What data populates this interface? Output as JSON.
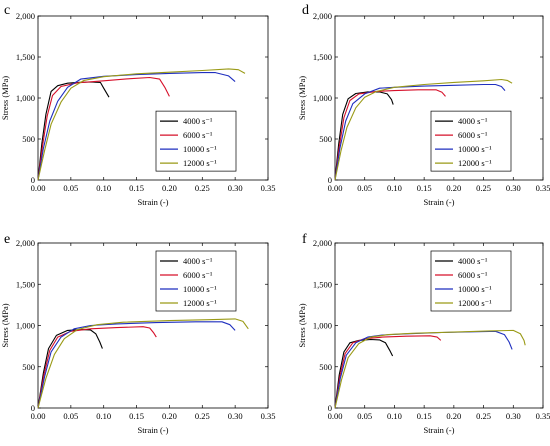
{
  "chart_data": [
    {
      "type": "line",
      "panel_label": "c",
      "xlabel": "Strain (-)",
      "ylabel": "Stress (MPa)",
      "xlim": [
        0,
        0.35
      ],
      "ylim": [
        0,
        2000
      ],
      "x_ticks": [
        "0.00",
        "0.05",
        "0.10",
        "0.15",
        "0.20",
        "0.25",
        "0.30",
        "0.35"
      ],
      "y_ticks": [
        "0",
        "500",
        "1,000",
        "1,500",
        "2,000"
      ],
      "legend_position": "center-right",
      "series": [
        {
          "name": "4000 s⁻¹",
          "color": "#000000",
          "points": [
            [
              0,
              0
            ],
            [
              0.006,
              450
            ],
            [
              0.012,
              800
            ],
            [
              0.02,
              1080
            ],
            [
              0.03,
              1150
            ],
            [
              0.045,
              1180
            ],
            [
              0.06,
              1190
            ],
            [
              0.08,
              1195
            ],
            [
              0.095,
              1190
            ],
            [
              0.1,
              1120
            ],
            [
              0.108,
              1010
            ]
          ]
        },
        {
          "name": "6000 s⁻¹",
          "color": "#d6102a",
          "points": [
            [
              0,
              0
            ],
            [
              0.007,
              420
            ],
            [
              0.014,
              780
            ],
            [
              0.022,
              1030
            ],
            [
              0.035,
              1140
            ],
            [
              0.06,
              1185
            ],
            [
              0.1,
              1210
            ],
            [
              0.14,
              1235
            ],
            [
              0.17,
              1250
            ],
            [
              0.185,
              1230
            ],
            [
              0.193,
              1130
            ],
            [
              0.2,
              1020
            ]
          ]
        },
        {
          "name": "10000 s⁻¹",
          "color": "#1f2fbf",
          "points": [
            [
              0,
              0
            ],
            [
              0.008,
              380
            ],
            [
              0.018,
              720
            ],
            [
              0.03,
              960
            ],
            [
              0.045,
              1130
            ],
            [
              0.065,
              1230
            ],
            [
              0.1,
              1265
            ],
            [
              0.15,
              1285
            ],
            [
              0.2,
              1300
            ],
            [
              0.25,
              1310
            ],
            [
              0.27,
              1310
            ],
            [
              0.29,
              1270
            ],
            [
              0.3,
              1200
            ]
          ]
        },
        {
          "name": "12000 s⁻¹",
          "color": "#9a9a16",
          "points": [
            [
              0,
              0
            ],
            [
              0.01,
              360
            ],
            [
              0.02,
              680
            ],
            [
              0.035,
              950
            ],
            [
              0.05,
              1120
            ],
            [
              0.07,
              1215
            ],
            [
              0.1,
              1260
            ],
            [
              0.15,
              1295
            ],
            [
              0.2,
              1315
            ],
            [
              0.25,
              1335
            ],
            [
              0.29,
              1355
            ],
            [
              0.305,
              1345
            ],
            [
              0.315,
              1300
            ]
          ]
        }
      ]
    },
    {
      "type": "line",
      "panel_label": "d",
      "xlabel": "Strain (-)",
      "ylabel": "Stress (MPa)",
      "xlim": [
        0,
        0.35
      ],
      "ylim": [
        0,
        2000
      ],
      "x_ticks": [
        "0.00",
        "0.05",
        "0.10",
        "0.15",
        "0.20",
        "0.25",
        "0.30",
        "0.35"
      ],
      "y_ticks": [
        "0",
        "500",
        "1,000",
        "1,500",
        "2,000"
      ],
      "legend_position": "center-right",
      "series": [
        {
          "name": "4000 s⁻¹",
          "color": "#000000",
          "points": [
            [
              0,
              0
            ],
            [
              0.006,
              430
            ],
            [
              0.013,
              800
            ],
            [
              0.022,
              990
            ],
            [
              0.035,
              1055
            ],
            [
              0.055,
              1075
            ],
            [
              0.075,
              1075
            ],
            [
              0.088,
              1050
            ],
            [
              0.095,
              980
            ],
            [
              0.098,
              920
            ]
          ]
        },
        {
          "name": "6000 s⁻¹",
          "color": "#d6102a",
          "points": [
            [
              0,
              0
            ],
            [
              0.007,
              400
            ],
            [
              0.015,
              760
            ],
            [
              0.025,
              970
            ],
            [
              0.04,
              1050
            ],
            [
              0.07,
              1080
            ],
            [
              0.1,
              1090
            ],
            [
              0.14,
              1100
            ],
            [
              0.17,
              1100
            ],
            [
              0.18,
              1070
            ],
            [
              0.186,
              1020
            ]
          ]
        },
        {
          "name": "10000 s⁻¹",
          "color": "#1f2fbf",
          "points": [
            [
              0,
              0
            ],
            [
              0.008,
              380
            ],
            [
              0.018,
              720
            ],
            [
              0.03,
              930
            ],
            [
              0.05,
              1050
            ],
            [
              0.075,
              1120
            ],
            [
              0.1,
              1130
            ],
            [
              0.15,
              1145
            ],
            [
              0.2,
              1155
            ],
            [
              0.25,
              1165
            ],
            [
              0.27,
              1165
            ],
            [
              0.28,
              1140
            ],
            [
              0.286,
              1090
            ]
          ]
        },
        {
          "name": "12000 s⁻¹",
          "color": "#9a9a16",
          "points": [
            [
              0,
              0
            ],
            [
              0.01,
              350
            ],
            [
              0.02,
              640
            ],
            [
              0.035,
              880
            ],
            [
              0.05,
              1010
            ],
            [
              0.07,
              1080
            ],
            [
              0.1,
              1130
            ],
            [
              0.15,
              1165
            ],
            [
              0.2,
              1190
            ],
            [
              0.25,
              1210
            ],
            [
              0.28,
              1225
            ],
            [
              0.29,
              1215
            ],
            [
              0.298,
              1180
            ]
          ]
        }
      ]
    },
    {
      "type": "line",
      "panel_label": "e",
      "xlabel": "Strain (-)",
      "ylabel": "Stress (MPa)",
      "xlim": [
        0,
        0.35
      ],
      "ylim": [
        0,
        2000
      ],
      "x_ticks": [
        "0.00",
        "0.05",
        "0.10",
        "0.15",
        "0.20",
        "0.25",
        "0.30",
        "0.35"
      ],
      "y_ticks": [
        "0",
        "500",
        "1,000",
        "1,500",
        "2,000"
      ],
      "legend_position": "top-right",
      "series": [
        {
          "name": "4000 s⁻¹",
          "color": "#000000",
          "points": [
            [
              0,
              0
            ],
            [
              0.008,
              420
            ],
            [
              0.016,
              720
            ],
            [
              0.028,
              880
            ],
            [
              0.045,
              940
            ],
            [
              0.065,
              950
            ],
            [
              0.08,
              945
            ],
            [
              0.088,
              900
            ],
            [
              0.094,
              800
            ],
            [
              0.098,
              720
            ]
          ]
        },
        {
          "name": "6000 s⁻¹",
          "color": "#d6102a",
          "points": [
            [
              0,
              0
            ],
            [
              0.009,
              400
            ],
            [
              0.018,
              700
            ],
            [
              0.03,
              860
            ],
            [
              0.05,
              930
            ],
            [
              0.08,
              960
            ],
            [
              0.12,
              975
            ],
            [
              0.16,
              985
            ],
            [
              0.17,
              970
            ],
            [
              0.176,
              910
            ],
            [
              0.18,
              860
            ]
          ]
        },
        {
          "name": "10000 s⁻¹",
          "color": "#1f2fbf",
          "points": [
            [
              0,
              0
            ],
            [
              0.01,
              380
            ],
            [
              0.02,
              680
            ],
            [
              0.035,
              860
            ],
            [
              0.055,
              960
            ],
            [
              0.08,
              1000
            ],
            [
              0.12,
              1020
            ],
            [
              0.18,
              1035
            ],
            [
              0.24,
              1045
            ],
            [
              0.28,
              1045
            ],
            [
              0.292,
              1010
            ],
            [
              0.3,
              940
            ]
          ]
        },
        {
          "name": "12000 s⁻¹",
          "color": "#9a9a16",
          "points": [
            [
              0,
              0
            ],
            [
              0.012,
              360
            ],
            [
              0.025,
              650
            ],
            [
              0.04,
              840
            ],
            [
              0.06,
              950
            ],
            [
              0.09,
              1010
            ],
            [
              0.13,
              1040
            ],
            [
              0.2,
              1060
            ],
            [
              0.26,
              1070
            ],
            [
              0.3,
              1080
            ],
            [
              0.312,
              1050
            ],
            [
              0.32,
              960
            ]
          ]
        }
      ]
    },
    {
      "type": "line",
      "panel_label": "f",
      "xlabel": "Strain (-)",
      "ylabel": "Stress (MPa)",
      "xlim": [
        0,
        0.35
      ],
      "ylim": [
        0,
        2000
      ],
      "x_ticks": [
        "0.00",
        "0.05",
        "0.10",
        "0.15",
        "0.20",
        "0.25",
        "0.30",
        "0.35"
      ],
      "y_ticks": [
        "0",
        "500",
        "1,000",
        "1,500",
        "2,000"
      ],
      "legend_position": "top-right",
      "series": [
        {
          "name": "4000 s⁻¹",
          "color": "#000000",
          "points": [
            [
              0,
              0
            ],
            [
              0.007,
              400
            ],
            [
              0.015,
              680
            ],
            [
              0.025,
              790
            ],
            [
              0.04,
              820
            ],
            [
              0.06,
              830
            ],
            [
              0.075,
              825
            ],
            [
              0.085,
              790
            ],
            [
              0.092,
              700
            ],
            [
              0.097,
              630
            ]
          ]
        },
        {
          "name": "6000 s⁻¹",
          "color": "#d6102a",
          "points": [
            [
              0,
              0
            ],
            [
              0.008,
              380
            ],
            [
              0.017,
              660
            ],
            [
              0.03,
              790
            ],
            [
              0.05,
              840
            ],
            [
              0.08,
              860
            ],
            [
              0.12,
              870
            ],
            [
              0.16,
              875
            ],
            [
              0.172,
              860
            ],
            [
              0.178,
              820
            ]
          ]
        },
        {
          "name": "10000 s⁻¹",
          "color": "#1f2fbf",
          "points": [
            [
              0,
              0
            ],
            [
              0.009,
              360
            ],
            [
              0.019,
              640
            ],
            [
              0.035,
              790
            ],
            [
              0.055,
              860
            ],
            [
              0.08,
              885
            ],
            [
              0.12,
              900
            ],
            [
              0.18,
              915
            ],
            [
              0.24,
              925
            ],
            [
              0.27,
              930
            ],
            [
              0.285,
              890
            ],
            [
              0.293,
              800
            ],
            [
              0.298,
              710
            ]
          ]
        },
        {
          "name": "12000 s⁻¹",
          "color": "#9a9a16",
          "points": [
            [
              0,
              0
            ],
            [
              0.011,
              340
            ],
            [
              0.022,
              610
            ],
            [
              0.04,
              780
            ],
            [
              0.06,
              860
            ],
            [
              0.09,
              890
            ],
            [
              0.13,
              905
            ],
            [
              0.2,
              920
            ],
            [
              0.26,
              935
            ],
            [
              0.3,
              940
            ],
            [
              0.312,
              900
            ],
            [
              0.318,
              820
            ],
            [
              0.32,
              760
            ]
          ]
        }
      ]
    }
  ]
}
